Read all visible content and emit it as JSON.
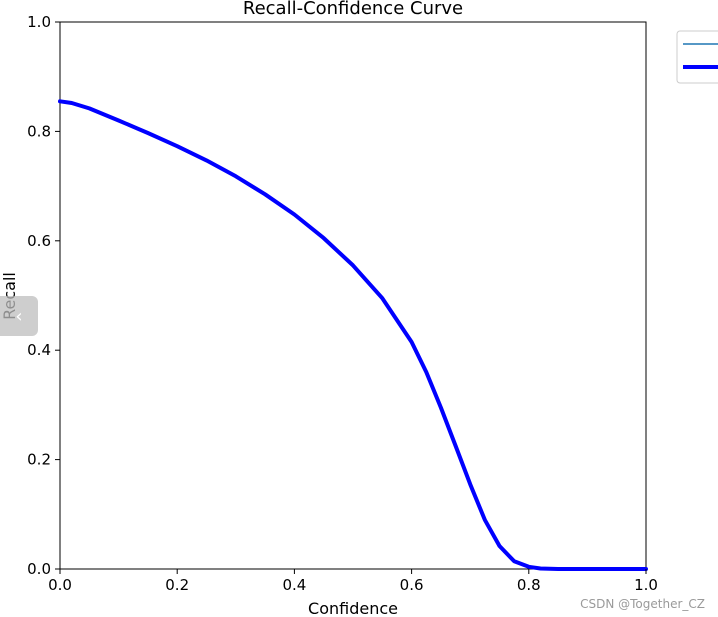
{
  "chart_data": {
    "type": "line",
    "title": "Recall-Confidence Curve",
    "xlabel": "Confidence",
    "ylabel": "Recall",
    "xlim": [
      0.0,
      1.0
    ],
    "ylim": [
      0.0,
      1.0
    ],
    "xticks": [
      "0.0",
      "0.2",
      "0.4",
      "0.6",
      "0.8",
      "1.0"
    ],
    "yticks": [
      "0.0",
      "0.2",
      "0.4",
      "0.6",
      "0.8",
      "1.0"
    ],
    "grid": false,
    "legend_placement": "outside-top-right",
    "series": [
      {
        "color": "#1f77b4",
        "linewidth": "thin",
        "x": [],
        "y": []
      },
      {
        "color": "#0000ff",
        "linewidth": "thick",
        "x": [
          0.0,
          0.02,
          0.05,
          0.1,
          0.15,
          0.2,
          0.25,
          0.3,
          0.35,
          0.4,
          0.45,
          0.5,
          0.55,
          0.6,
          0.625,
          0.65,
          0.675,
          0.7,
          0.725,
          0.75,
          0.775,
          0.8,
          0.82,
          0.85,
          0.9,
          0.95,
          1.0
        ],
        "y": [
          0.855,
          0.852,
          0.842,
          0.82,
          0.797,
          0.773,
          0.747,
          0.718,
          0.685,
          0.648,
          0.605,
          0.555,
          0.495,
          0.415,
          0.36,
          0.295,
          0.225,
          0.155,
          0.09,
          0.042,
          0.014,
          0.004,
          0.001,
          0.0,
          0.0,
          0.0,
          0.0
        ]
      }
    ]
  },
  "watermark": "CSDN @Together_CZ",
  "nav_button": {
    "icon": "chevron-left-icon",
    "glyph": "‹"
  }
}
